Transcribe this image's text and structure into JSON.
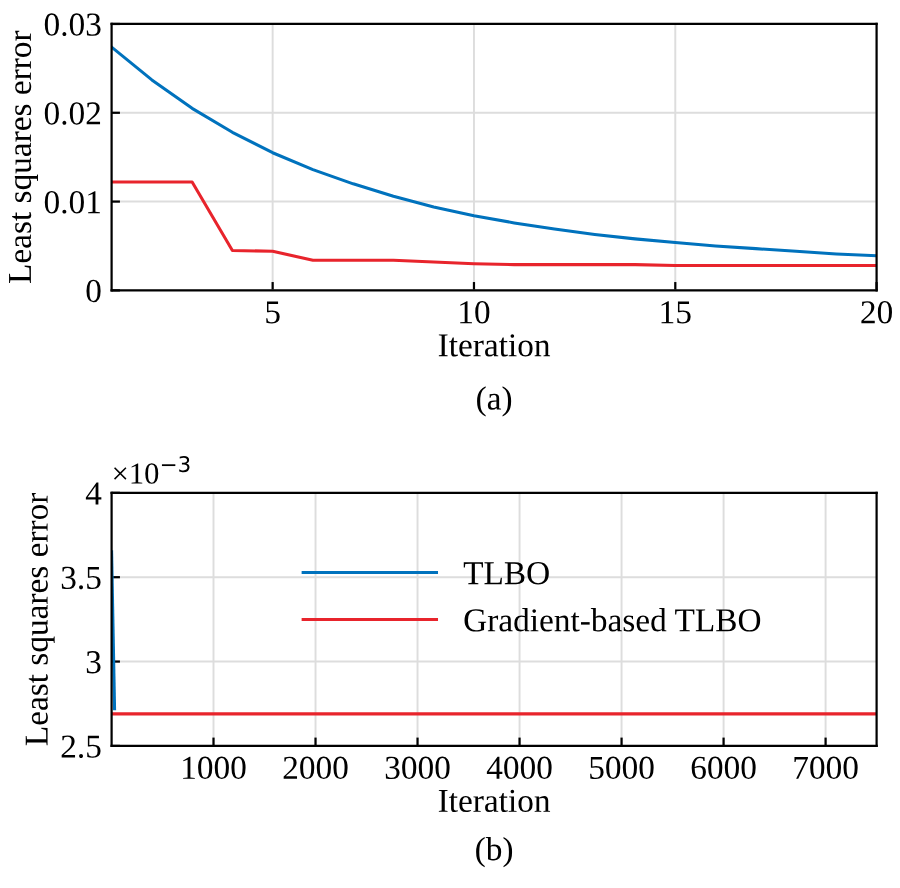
{
  "chart_data": [
    {
      "type": "line",
      "xlabel": "Iteration",
      "ylabel": "Least squares error",
      "annotations": [
        "(a)"
      ],
      "xlim": [
        1,
        20
      ],
      "xticks": [
        5,
        10,
        15,
        20
      ],
      "ylim": [
        0,
        0.03
      ],
      "yticks": [
        0,
        0.01,
        0.02,
        0.03
      ],
      "grid": true,
      "series": [
        {
          "color": "#0072bd",
          "x": [
            1,
            2,
            3,
            4,
            5,
            6,
            7,
            8,
            9,
            10,
            11,
            12,
            13,
            14,
            15,
            16,
            17,
            18,
            19,
            20
          ],
          "values": [
            0.0274,
            0.0237,
            0.0205,
            0.0178,
            0.0155,
            0.0136,
            0.012,
            0.0106,
            0.0094,
            0.0084,
            0.0076,
            0.0069,
            0.0063,
            0.0058,
            0.0054,
            0.005,
            0.0047,
            0.0044,
            0.0041,
            0.0039
          ]
        },
        {
          "color": "#e8242c",
          "x": [
            1,
            2,
            3,
            4,
            5,
            6,
            7,
            8,
            9,
            10,
            11,
            12,
            13,
            14,
            15,
            16,
            17,
            18,
            19,
            20
          ],
          "values": [
            0.0122,
            0.0122,
            0.0122,
            0.0045,
            0.0044,
            0.0034,
            0.0034,
            0.0034,
            0.0032,
            0.003,
            0.0029,
            0.0029,
            0.0029,
            0.0029,
            0.0028,
            0.0028,
            0.0028,
            0.0028,
            0.0028,
            0.0028
          ]
        }
      ]
    },
    {
      "type": "line",
      "xlabel": "Iteration",
      "ylabel": "Least squares error",
      "annotations": [
        "×10$^{−3}$",
        "(b)"
      ],
      "xlim": [
        1,
        7500
      ],
      "xticks": [
        1000,
        2000,
        3000,
        4000,
        5000,
        6000,
        7000
      ],
      "ylim": [
        2.5,
        4
      ],
      "yticks": [
        2.5,
        3,
        3.5,
        4
      ],
      "grid": true,
      "legend": "top",
      "series": [
        {
          "name": "TLBO",
          "color": "#0072bd",
          "x": [
            1,
            30
          ],
          "values": [
            3.65,
            2.72
          ]
        },
        {
          "name": "Gradient-based TLBO",
          "color": "#e8242c",
          "x": [
            1,
            7500
          ],
          "values": [
            2.69,
            2.69
          ]
        }
      ]
    }
  ]
}
